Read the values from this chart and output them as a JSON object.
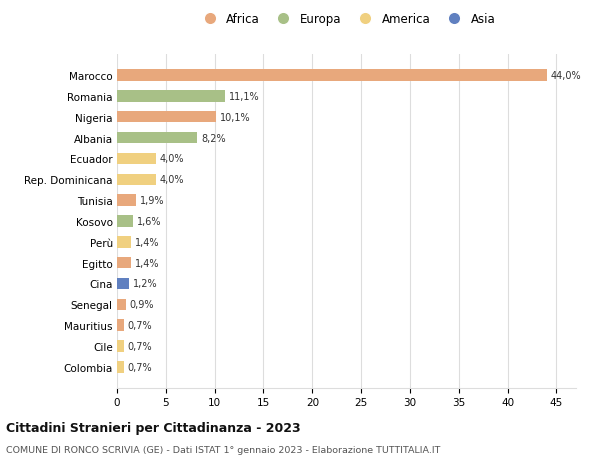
{
  "countries": [
    "Marocco",
    "Romania",
    "Nigeria",
    "Albania",
    "Ecuador",
    "Rep. Dominicana",
    "Tunisia",
    "Kosovo",
    "Perù",
    "Egitto",
    "Cina",
    "Senegal",
    "Mauritius",
    "Cile",
    "Colombia"
  ],
  "values": [
    44.0,
    11.1,
    10.1,
    8.2,
    4.0,
    4.0,
    1.9,
    1.6,
    1.4,
    1.4,
    1.2,
    0.9,
    0.7,
    0.7,
    0.7
  ],
  "labels": [
    "44,0%",
    "11,1%",
    "10,1%",
    "8,2%",
    "4,0%",
    "4,0%",
    "1,9%",
    "1,6%",
    "1,4%",
    "1,4%",
    "1,2%",
    "0,9%",
    "0,7%",
    "0,7%",
    "0,7%"
  ],
  "continents": [
    "Africa",
    "Europa",
    "Africa",
    "Europa",
    "America",
    "America",
    "Africa",
    "Europa",
    "America",
    "Africa",
    "Asia",
    "Africa",
    "Africa",
    "America",
    "America"
  ],
  "continent_colors": {
    "Africa": "#E8A87C",
    "Europa": "#A8C087",
    "America": "#F0D080",
    "Asia": "#6080C0"
  },
  "legend_order": [
    "Africa",
    "Europa",
    "America",
    "Asia"
  ],
  "xlim": [
    0,
    47
  ],
  "xticks": [
    0,
    5,
    10,
    15,
    20,
    25,
    30,
    35,
    40,
    45
  ],
  "title1": "Cittadini Stranieri per Cittadinanza - 2023",
  "title2": "COMUNE DI RONCO SCRIVIA (GE) - Dati ISTAT 1° gennaio 2023 - Elaborazione TUTTITALIA.IT",
  "background_color": "#ffffff",
  "grid_color": "#dddddd",
  "bar_height": 0.55
}
